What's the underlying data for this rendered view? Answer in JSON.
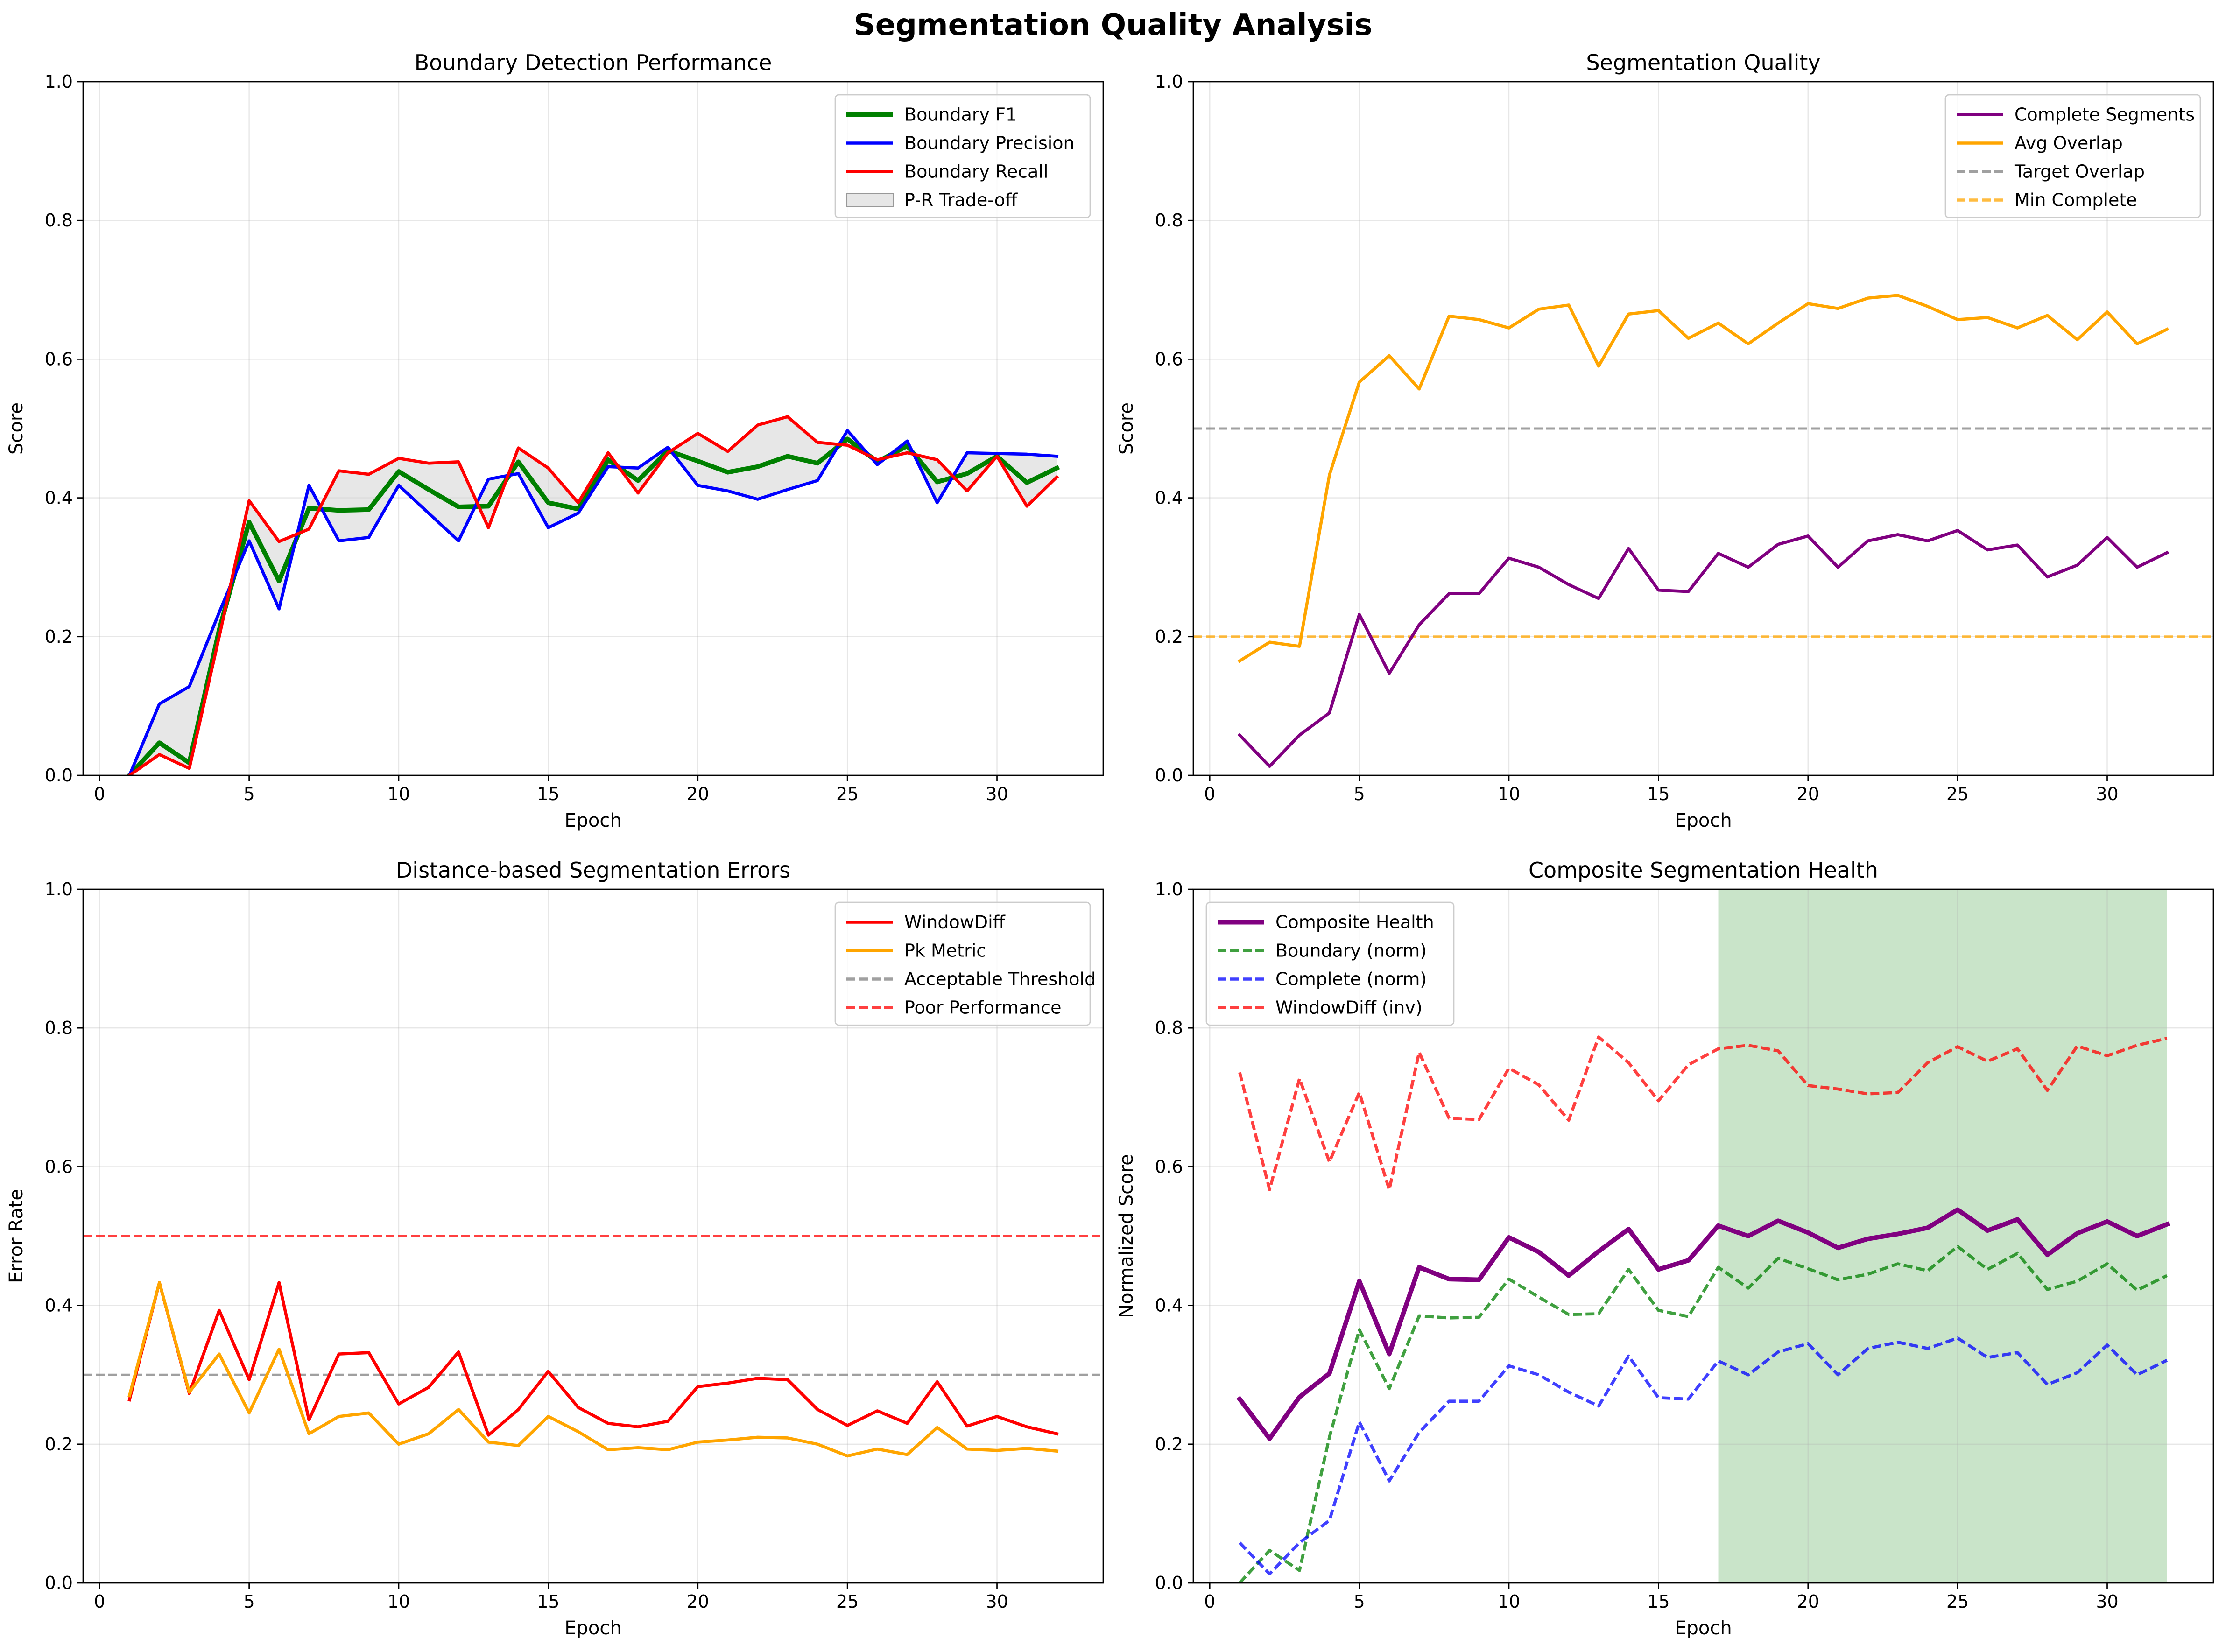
{
  "figure_title": "Segmentation Quality Analysis",
  "colors": {
    "green": "#008000",
    "blue": "#0000ff",
    "red": "#ff0000",
    "orange": "#ffa500",
    "purple": "#800080",
    "gray": "#808080",
    "tradeoff_fill": "#d3d3d3",
    "highlight_fill": "#4ca64c"
  },
  "chart_data": [
    {
      "id": "boundary",
      "type": "line",
      "title": "Boundary Detection Performance",
      "xlabel": "Epoch",
      "ylabel": "Score",
      "xlim": [
        -0.55,
        33.55
      ],
      "ylim": [
        0,
        1
      ],
      "xticks": [
        0,
        5,
        10,
        15,
        20,
        25,
        30
      ],
      "xtick_labels": [
        "0",
        "5",
        "10",
        "15",
        "20",
        "25",
        "30"
      ],
      "yticks": [
        0,
        0.2,
        0.4,
        0.6,
        0.8,
        1.0
      ],
      "ytick_labels": [
        "0.0",
        "0.2",
        "0.4",
        "0.6",
        "0.8",
        "1.0"
      ],
      "grid": true,
      "legend_position": "upper right",
      "x": [
        1,
        2,
        3,
        4,
        5,
        6,
        7,
        8,
        9,
        10,
        11,
        12,
        13,
        14,
        15,
        16,
        17,
        18,
        19,
        20,
        21,
        22,
        23,
        24,
        25,
        26,
        27,
        28,
        29,
        30,
        31,
        32
      ],
      "fill_between": {
        "name": "P-R Trade-off",
        "color": "tradeoff_fill",
        "upper_series": "Boundary Precision",
        "lower_series": "Boundary Recall"
      },
      "series": [
        {
          "name": "Boundary F1",
          "color": "green",
          "width": 3,
          "dash": "solid",
          "values": [
            0.0,
            0.047,
            0.018,
            0.21,
            0.365,
            0.28,
            0.385,
            0.382,
            0.383,
            0.438,
            0.412,
            0.387,
            0.388,
            0.452,
            0.393,
            0.384,
            0.455,
            0.425,
            0.468,
            0.453,
            0.437,
            0.445,
            0.46,
            0.45,
            0.485,
            0.452,
            0.475,
            0.423,
            0.435,
            0.46,
            0.422,
            0.443
          ]
        },
        {
          "name": "Boundary Precision",
          "color": "blue",
          "width": 2,
          "dash": "solid",
          "values": [
            0.0,
            0.103,
            0.128,
            0.235,
            0.338,
            0.24,
            0.418,
            0.338,
            0.343,
            0.418,
            0.378,
            0.338,
            0.427,
            0.435,
            0.357,
            0.378,
            0.445,
            0.443,
            0.473,
            0.418,
            0.41,
            0.398,
            0.412,
            0.425,
            0.497,
            0.448,
            0.482,
            0.393,
            0.465,
            0.464,
            0.463,
            0.46
          ]
        },
        {
          "name": "Boundary Recall",
          "color": "red",
          "width": 2,
          "dash": "solid",
          "values": [
            0.0,
            0.03,
            0.01,
            0.2,
            0.396,
            0.337,
            0.355,
            0.439,
            0.434,
            0.457,
            0.45,
            0.452,
            0.357,
            0.472,
            0.443,
            0.393,
            0.465,
            0.407,
            0.465,
            0.493,
            0.467,
            0.505,
            0.517,
            0.48,
            0.476,
            0.455,
            0.465,
            0.455,
            0.41,
            0.46,
            0.388,
            0.43
          ]
        }
      ]
    },
    {
      "id": "quality",
      "type": "line",
      "title": "Segmentation Quality",
      "xlabel": "Epoch",
      "ylabel": "Score",
      "xlim": [
        -0.55,
        33.55
      ],
      "ylim": [
        0,
        1
      ],
      "xticks": [
        0,
        5,
        10,
        15,
        20,
        25,
        30
      ],
      "xtick_labels": [
        "0",
        "5",
        "10",
        "15",
        "20",
        "25",
        "30"
      ],
      "yticks": [
        0,
        0.2,
        0.4,
        0.6,
        0.8,
        1.0
      ],
      "ytick_labels": [
        "0.0",
        "0.2",
        "0.4",
        "0.6",
        "0.8",
        "1.0"
      ],
      "grid": true,
      "legend_position": "upper right",
      "x": [
        1,
        2,
        3,
        4,
        5,
        6,
        7,
        8,
        9,
        10,
        11,
        12,
        13,
        14,
        15,
        16,
        17,
        18,
        19,
        20,
        21,
        22,
        23,
        24,
        25,
        26,
        27,
        28,
        29,
        30,
        31,
        32
      ],
      "series": [
        {
          "name": "Complete Segments",
          "color": "purple",
          "width": 2,
          "dash": "solid",
          "values": [
            0.058,
            0.013,
            0.058,
            0.09,
            0.232,
            0.147,
            0.217,
            0.262,
            0.262,
            0.313,
            0.3,
            0.275,
            0.255,
            0.327,
            0.267,
            0.265,
            0.32,
            0.3,
            0.333,
            0.345,
            0.3,
            0.338,
            0.347,
            0.338,
            0.353,
            0.325,
            0.332,
            0.286,
            0.303,
            0.343,
            0.3,
            0.321
          ]
        },
        {
          "name": "Avg Overlap",
          "color": "orange",
          "width": 2,
          "dash": "solid",
          "values": [
            0.165,
            0.192,
            0.186,
            0.433,
            0.567,
            0.605,
            0.557,
            0.662,
            0.657,
            0.645,
            0.672,
            0.678,
            0.59,
            0.665,
            0.67,
            0.63,
            0.652,
            0.622,
            0.652,
            0.68,
            0.673,
            0.688,
            0.692,
            0.676,
            0.657,
            0.66,
            0.645,
            0.663,
            0.628,
            0.668,
            0.622,
            0.643
          ]
        }
      ],
      "hlines": [
        {
          "name": "Target Overlap",
          "y": 0.5,
          "color": "gray"
        },
        {
          "name": "Min Complete",
          "y": 0.2,
          "color": "orange"
        }
      ]
    },
    {
      "id": "errors",
      "type": "line",
      "title": "Distance-based Segmentation Errors",
      "xlabel": "Epoch",
      "ylabel": "Error Rate",
      "xlim": [
        -0.55,
        33.55
      ],
      "ylim": [
        0,
        1
      ],
      "xticks": [
        0,
        5,
        10,
        15,
        20,
        25,
        30
      ],
      "xtick_labels": [
        "0",
        "5",
        "10",
        "15",
        "20",
        "25",
        "30"
      ],
      "yticks": [
        0,
        0.2,
        0.4,
        0.6,
        0.8,
        1.0
      ],
      "ytick_labels": [
        "0.0",
        "0.2",
        "0.4",
        "0.6",
        "0.8",
        "1.0"
      ],
      "grid": true,
      "legend_position": "upper right",
      "x": [
        1,
        2,
        3,
        4,
        5,
        6,
        7,
        8,
        9,
        10,
        11,
        12,
        13,
        14,
        15,
        16,
        17,
        18,
        19,
        20,
        21,
        22,
        23,
        24,
        25,
        26,
        27,
        28,
        29,
        30,
        31,
        32
      ],
      "series": [
        {
          "name": "WindowDiff",
          "color": "red",
          "width": 2,
          "dash": "solid",
          "values": [
            0.264,
            0.433,
            0.273,
            0.393,
            0.293,
            0.433,
            0.235,
            0.33,
            0.332,
            0.258,
            0.282,
            0.333,
            0.213,
            0.25,
            0.305,
            0.253,
            0.23,
            0.225,
            0.233,
            0.283,
            0.288,
            0.295,
            0.293,
            0.25,
            0.227,
            0.248,
            0.23,
            0.29,
            0.226,
            0.24,
            0.225,
            0.215
          ]
        },
        {
          "name": "Pk Metric",
          "color": "orange",
          "width": 2,
          "dash": "solid",
          "values": [
            0.27,
            0.433,
            0.275,
            0.33,
            0.245,
            0.337,
            0.215,
            0.24,
            0.245,
            0.2,
            0.215,
            0.25,
            0.203,
            0.198,
            0.24,
            0.218,
            0.192,
            0.195,
            0.192,
            0.203,
            0.206,
            0.21,
            0.209,
            0.2,
            0.183,
            0.193,
            0.185,
            0.224,
            0.193,
            0.191,
            0.194,
            0.19
          ]
        }
      ],
      "hlines": [
        {
          "name": "Acceptable Threshold",
          "y": 0.3,
          "color": "gray"
        },
        {
          "name": "Poor Performance",
          "y": 0.5,
          "color": "red"
        }
      ]
    },
    {
      "id": "health",
      "type": "line",
      "title": "Composite Segmentation Health",
      "xlabel": "Epoch",
      "ylabel": "Normalized Score",
      "xlim": [
        -0.55,
        33.55
      ],
      "ylim": [
        0,
        1
      ],
      "xticks": [
        0,
        5,
        10,
        15,
        20,
        25,
        30
      ],
      "xtick_labels": [
        "0",
        "5",
        "10",
        "15",
        "20",
        "25",
        "30"
      ],
      "yticks": [
        0,
        0.2,
        0.4,
        0.6,
        0.8,
        1.0
      ],
      "ytick_labels": [
        "0.0",
        "0.2",
        "0.4",
        "0.6",
        "0.8",
        "1.0"
      ],
      "grid": true,
      "legend_position": "upper left",
      "x": [
        1,
        2,
        3,
        4,
        5,
        6,
        7,
        8,
        9,
        10,
        11,
        12,
        13,
        14,
        15,
        16,
        17,
        18,
        19,
        20,
        21,
        22,
        23,
        24,
        25,
        26,
        27,
        28,
        29,
        30,
        31,
        32
      ],
      "highlight_span": {
        "x_start": 17,
        "x_end": 32,
        "color": "highlight_fill"
      },
      "series": [
        {
          "name": "Composite Health",
          "color": "purple",
          "width": 3,
          "dash": "solid",
          "values": [
            0.265,
            0.208,
            0.268,
            0.302,
            0.435,
            0.33,
            0.455,
            0.438,
            0.437,
            0.498,
            0.477,
            0.443,
            0.478,
            0.51,
            0.452,
            0.465,
            0.515,
            0.5,
            0.522,
            0.505,
            0.483,
            0.496,
            0.503,
            0.512,
            0.538,
            0.508,
            0.524,
            0.473,
            0.504,
            0.521,
            0.5,
            0.517
          ]
        },
        {
          "name": "Boundary (norm)",
          "color": "green",
          "width": 2,
          "dash": "dashed",
          "values": [
            0.0,
            0.047,
            0.018,
            0.21,
            0.365,
            0.28,
            0.385,
            0.382,
            0.383,
            0.438,
            0.412,
            0.387,
            0.388,
            0.452,
            0.393,
            0.384,
            0.455,
            0.425,
            0.468,
            0.453,
            0.437,
            0.445,
            0.46,
            0.45,
            0.485,
            0.452,
            0.475,
            0.423,
            0.435,
            0.46,
            0.422,
            0.443
          ]
        },
        {
          "name": "Complete (norm)",
          "color": "blue",
          "width": 2,
          "dash": "dashed",
          "values": [
            0.058,
            0.013,
            0.058,
            0.09,
            0.232,
            0.147,
            0.217,
            0.262,
            0.262,
            0.313,
            0.3,
            0.275,
            0.255,
            0.327,
            0.267,
            0.265,
            0.32,
            0.3,
            0.333,
            0.345,
            0.3,
            0.338,
            0.347,
            0.338,
            0.353,
            0.325,
            0.332,
            0.286,
            0.303,
            0.343,
            0.3,
            0.321
          ]
        },
        {
          "name": "WindowDiff (inv)",
          "color": "red",
          "width": 2,
          "dash": "dashed",
          "values": [
            0.736,
            0.567,
            0.727,
            0.607,
            0.707,
            0.567,
            0.765,
            0.67,
            0.668,
            0.742,
            0.718,
            0.667,
            0.787,
            0.75,
            0.695,
            0.747,
            0.77,
            0.775,
            0.767,
            0.717,
            0.712,
            0.705,
            0.707,
            0.75,
            0.773,
            0.752,
            0.77,
            0.71,
            0.774,
            0.76,
            0.775,
            0.785
          ]
        }
      ]
    }
  ]
}
